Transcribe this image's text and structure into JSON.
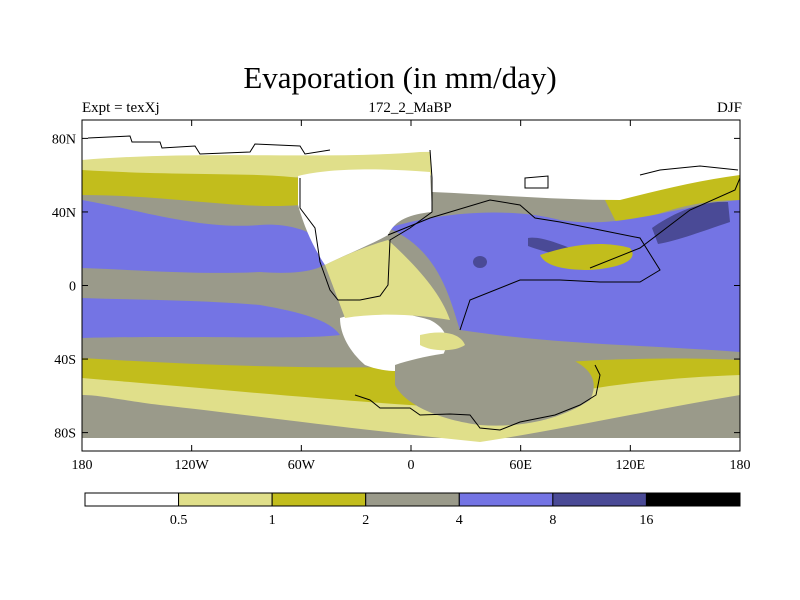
{
  "title": "Evaporation (in mm/day)",
  "subtitle_left": "Expt = texXj",
  "subtitle_center": "172_2_MaBP",
  "subtitle_right": "DJF",
  "colors": {
    "lt05": "#ffffff",
    "b05_1": "#e0df8a",
    "b1_2": "#c2bd1c",
    "b2_4": "#9a9a8a",
    "b4_8": "#7474e4",
    "b8_16": "#4a4a96",
    "gt16": "#000000",
    "coast": "#000000"
  },
  "x_ticks": [
    {
      "value": -180,
      "label": "180"
    },
    {
      "value": -120,
      "label": "120W"
    },
    {
      "value": -60,
      "label": "60W"
    },
    {
      "value": 0,
      "label": "0"
    },
    {
      "value": 60,
      "label": "60E"
    },
    {
      "value": 120,
      "label": "120E"
    },
    {
      "value": 180,
      "label": "180"
    }
  ],
  "y_ticks": [
    {
      "value": 80,
      "label": "80N"
    },
    {
      "value": 40,
      "label": "40N"
    },
    {
      "value": 0,
      "label": "0"
    },
    {
      "value": -40,
      "label": "40S"
    },
    {
      "value": -80,
      "label": "80S"
    }
  ],
  "colorbar": {
    "levels": [
      "0.5",
      "1",
      "2",
      "4",
      "8",
      "16"
    ],
    "fills": [
      "#ffffff",
      "#e0df8a",
      "#c2bd1c",
      "#9a9a8a",
      "#7474e4",
      "#4a4a96",
      "#000000"
    ]
  }
}
